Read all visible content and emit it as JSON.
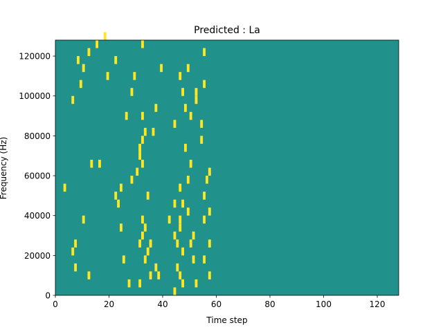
{
  "chart_data": {
    "type": "heatmap",
    "title": "Predicted : La",
    "xlabel": "Time step",
    "ylabel": "Frequency (Hz)",
    "xlim": [
      0,
      128
    ],
    "ylim": [
      0,
      128000
    ],
    "x_ticks": [
      0,
      20,
      40,
      60,
      80,
      100,
      120
    ],
    "y_ticks": [
      0,
      20000,
      40000,
      60000,
      80000,
      100000,
      120000
    ],
    "colorscale": {
      "low": "#440154",
      "mid": "#21918c",
      "high": "#fde725"
    },
    "background_value": 0,
    "high_value": 1,
    "low_value": -1,
    "bin_width_time": 1,
    "bin_height_hz": 4000,
    "grid": false,
    "legend": "none",
    "high_cells": [
      [
        27,
        1
      ],
      [
        12,
        2
      ],
      [
        7,
        3
      ],
      [
        6,
        5
      ],
      [
        44,
        11
      ],
      [
        34,
        12
      ],
      [
        24,
        13
      ],
      [
        16,
        16
      ],
      [
        31,
        18
      ],
      [
        49,
        28
      ],
      [
        37,
        23
      ],
      [
        28,
        25
      ],
      [
        39,
        28
      ],
      [
        15,
        31
      ],
      [
        12,
        30
      ],
      [
        8,
        29
      ],
      [
        10,
        28
      ],
      [
        22,
        29
      ],
      [
        18,
        32
      ],
      [
        32,
        31
      ],
      [
        29,
        27
      ],
      [
        19,
        27
      ],
      [
        9,
        26
      ],
      [
        6,
        24
      ],
      [
        13,
        16
      ],
      [
        36,
        20
      ],
      [
        44,
        21
      ],
      [
        3,
        13
      ],
      [
        10,
        9
      ],
      [
        7,
        6
      ],
      [
        33,
        8
      ],
      [
        46,
        9
      ],
      [
        32,
        7
      ],
      [
        47,
        5
      ],
      [
        25,
        4
      ],
      [
        38,
        2
      ],
      [
        31,
        1
      ],
      [
        33,
        4
      ],
      [
        35,
        6
      ],
      [
        24,
        8
      ],
      [
        23,
        11
      ],
      [
        22,
        12
      ],
      [
        28,
        14
      ],
      [
        30,
        15
      ],
      [
        32,
        16
      ],
      [
        31,
        17
      ],
      [
        32,
        19
      ],
      [
        33,
        20
      ],
      [
        26,
        22
      ],
      [
        50,
        22
      ],
      [
        52,
        25
      ],
      [
        55,
        30
      ],
      [
        55,
        26
      ],
      [
        52,
        24
      ],
      [
        54,
        21
      ],
      [
        54,
        19
      ],
      [
        50,
        16
      ],
      [
        56,
        14
      ],
      [
        55,
        12
      ],
      [
        55,
        9
      ],
      [
        51,
        7
      ],
      [
        50,
        6
      ],
      [
        55,
        4
      ],
      [
        52,
        1
      ],
      [
        57,
        15
      ],
      [
        57,
        10
      ],
      [
        57,
        6
      ],
      [
        57,
        2
      ],
      [
        32,
        9
      ],
      [
        34,
        5
      ],
      [
        31,
        6
      ],
      [
        32,
        22
      ],
      [
        46,
        27
      ],
      [
        47,
        25
      ],
      [
        48,
        23
      ],
      [
        48,
        18
      ],
      [
        49,
        14
      ],
      [
        46,
        13
      ],
      [
        47,
        11
      ],
      [
        49,
        10
      ],
      [
        46,
        8
      ],
      [
        45,
        6
      ],
      [
        51,
        4
      ],
      [
        46,
        2
      ],
      [
        47,
        1
      ],
      [
        44,
        0
      ],
      [
        37,
        3
      ],
      [
        35,
        2
      ],
      [
        45,
        3
      ],
      [
        44,
        7
      ],
      [
        42,
        9
      ]
    ]
  }
}
